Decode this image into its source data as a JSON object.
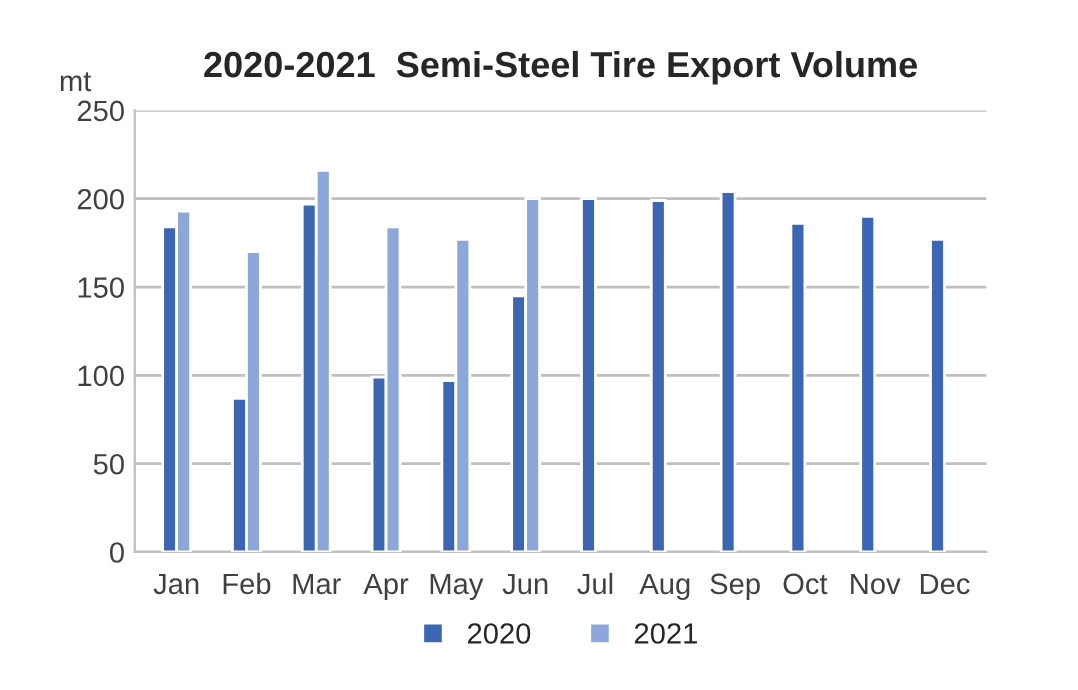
{
  "chart_data": {
    "type": "bar",
    "title": "2020-2021  Semi-Steel Tire Export Volume",
    "ylabel": "mt",
    "categories": [
      "Jan",
      "Feb",
      "Mar",
      "Apr",
      "May",
      "Jun",
      "Jul",
      "Aug",
      "Sep",
      "Oct",
      "Nov",
      "Dec"
    ],
    "series": [
      {
        "name": "2020",
        "color": "#3c65b4",
        "values": [
          184,
          87,
          197,
          99,
          97,
          145,
          200,
          199,
          204,
          186,
          190,
          177
        ]
      },
      {
        "name": "2021",
        "color": "#8ea7db",
        "values": [
          193,
          170,
          216,
          184,
          177,
          200,
          null,
          null,
          null,
          null,
          null,
          null
        ]
      }
    ],
    "ylim": [
      0,
      250
    ],
    "yticks": [
      0,
      50,
      100,
      150,
      200,
      250
    ],
    "grid": "y",
    "legend": "bottom"
  }
}
